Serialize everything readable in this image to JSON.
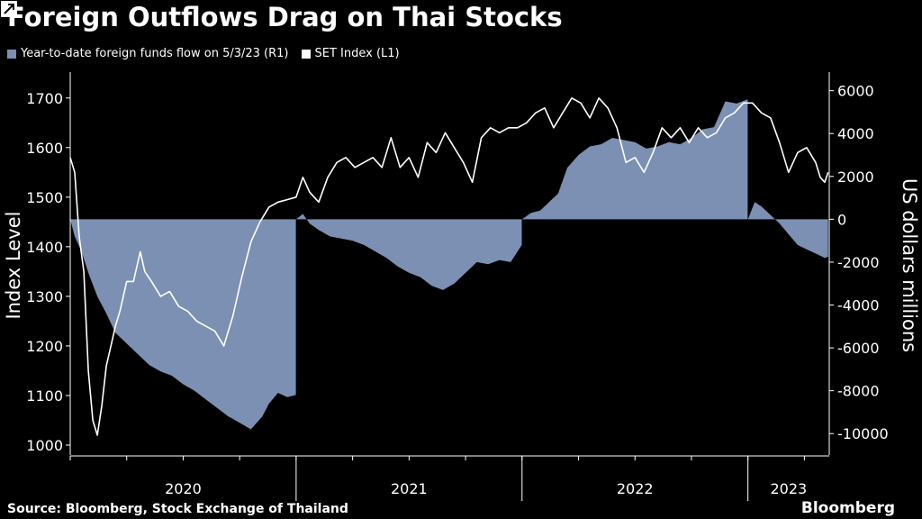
{
  "chart_data": {
    "type": "area+line",
    "title": "Foreign Outflows Drag on Thai Stocks",
    "legend": [
      {
        "name": "Year-to-date foreign funds flow on 5/3/23 (R1)",
        "color": "#7b90b3"
      },
      {
        "name": "SET Index  (L1)",
        "color": "#ffffff"
      }
    ],
    "ylabel_left": "Index Level",
    "ylabel_right": "US dollars millions",
    "ylim_left": [
      980,
      1745
    ],
    "ylim_right": [
      -11000,
      6700
    ],
    "yticks_left": [
      "1700",
      "1600",
      "1500",
      "1400",
      "1300",
      "1200",
      "1100",
      "1000"
    ],
    "yticks_left_values": [
      1700,
      1600,
      1500,
      1400,
      1300,
      1200,
      1100,
      1000
    ],
    "yticks_right": [
      "6000",
      "4000",
      "2000",
      "0",
      "-2000",
      "-4000",
      "-6000",
      "-8000",
      "-10000"
    ],
    "yticks_right_values": [
      6000,
      4000,
      2000,
      0,
      -2000,
      -4000,
      -6000,
      -8000,
      -10000
    ],
    "x_range": [
      2020.0,
      2023.36
    ],
    "xlabels": [
      "2020",
      "2021",
      "2022",
      "2023"
    ],
    "year_starts": [
      2021.0,
      2022.0,
      2023.0
    ],
    "series": [
      {
        "name": "Year-to-date foreign funds flow on 5/3/23 (R1)",
        "type": "area",
        "x": [
          2020.0,
          2020.02,
          2020.05,
          2020.08,
          2020.12,
          2020.16,
          2020.2,
          2020.25,
          2020.3,
          2020.35,
          2020.4,
          2020.45,
          2020.5,
          2020.55,
          2020.6,
          2020.65,
          2020.7,
          2020.75,
          2020.8,
          2020.85,
          2020.88,
          2020.92,
          2020.96,
          2020.999,
          2021.0,
          2021.03,
          2021.06,
          2021.1,
          2021.15,
          2021.2,
          2021.25,
          2021.3,
          2021.35,
          2021.4,
          2021.45,
          2021.5,
          2021.55,
          2021.6,
          2021.65,
          2021.7,
          2021.75,
          2021.8,
          2021.85,
          2021.9,
          2021.95,
          2021.999,
          2022.0,
          2022.04,
          2022.08,
          2022.12,
          2022.16,
          2022.2,
          2022.25,
          2022.3,
          2022.35,
          2022.4,
          2022.45,
          2022.5,
          2022.55,
          2022.6,
          2022.65,
          2022.7,
          2022.75,
          2022.8,
          2022.85,
          2022.9,
          2022.95,
          2022.999,
          2023.0,
          2023.03,
          2023.06,
          2023.1,
          2023.14,
          2023.18,
          2023.22,
          2023.26,
          2023.3,
          2023.34,
          2023.355
        ],
        "values": [
          0,
          -800,
          -1500,
          -2500,
          -3600,
          -4400,
          -5300,
          -5800,
          -6300,
          -6800,
          -7100,
          -7300,
          -7700,
          -8000,
          -8400,
          -8800,
          -9200,
          -9500,
          -9800,
          -9200,
          -8600,
          -8100,
          -8300,
          -8200,
          0,
          250,
          -200,
          -500,
          -800,
          -900,
          -1000,
          -1200,
          -1500,
          -1800,
          -2200,
          -2500,
          -2700,
          -3100,
          -3300,
          -3000,
          -2500,
          -2000,
          -2100,
          -1900,
          -2000,
          -1200,
          0,
          300,
          400,
          800,
          1200,
          2400,
          3000,
          3400,
          3500,
          3800,
          3700,
          3600,
          3300,
          3400,
          3600,
          3500,
          3800,
          4200,
          4300,
          5500,
          5400,
          5600,
          0,
          800,
          600,
          200,
          -200,
          -700,
          -1200,
          -1400,
          -1600,
          -1800,
          -1750
        ]
      },
      {
        "name": "SET Index  (L1)",
        "type": "line",
        "x": [
          2020.0,
          2020.02,
          2020.04,
          2020.06,
          2020.08,
          2020.1,
          2020.12,
          2020.14,
          2020.16,
          2020.18,
          2020.2,
          2020.22,
          2020.25,
          2020.28,
          2020.31,
          2020.33,
          2020.36,
          2020.4,
          2020.44,
          2020.48,
          2020.52,
          2020.56,
          2020.6,
          2020.64,
          2020.68,
          2020.72,
          2020.76,
          2020.8,
          2020.84,
          2020.88,
          2020.92,
          2020.96,
          2021.0,
          2021.03,
          2021.06,
          2021.1,
          2021.14,
          2021.18,
          2021.22,
          2021.26,
          2021.3,
          2021.34,
          2021.38,
          2021.42,
          2021.46,
          2021.5,
          2021.54,
          2021.58,
          2021.62,
          2021.66,
          2021.7,
          2021.74,
          2021.78,
          2021.82,
          2021.86,
          2021.9,
          2021.94,
          2021.98,
          2022.02,
          2022.06,
          2022.1,
          2022.14,
          2022.18,
          2022.22,
          2022.26,
          2022.3,
          2022.34,
          2022.38,
          2022.42,
          2022.46,
          2022.5,
          2022.54,
          2022.58,
          2022.62,
          2022.66,
          2022.7,
          2022.74,
          2022.78,
          2022.82,
          2022.86,
          2022.9,
          2022.94,
          2022.98,
          2023.02,
          2023.06,
          2023.1,
          2023.14,
          2023.18,
          2023.22,
          2023.26,
          2023.3,
          2023.32,
          2023.34,
          2023.355
        ],
        "values": [
          1580,
          1550,
          1420,
          1350,
          1150,
          1050,
          1020,
          1080,
          1160,
          1200,
          1240,
          1270,
          1330,
          1330,
          1390,
          1350,
          1330,
          1300,
          1310,
          1280,
          1270,
          1250,
          1240,
          1230,
          1200,
          1260,
          1340,
          1410,
          1450,
          1480,
          1490,
          1495,
          1500,
          1540,
          1510,
          1490,
          1540,
          1570,
          1580,
          1560,
          1570,
          1580,
          1560,
          1620,
          1560,
          1580,
          1540,
          1610,
          1590,
          1630,
          1600,
          1570,
          1530,
          1620,
          1640,
          1630,
          1640,
          1640,
          1650,
          1670,
          1680,
          1640,
          1670,
          1700,
          1690,
          1660,
          1700,
          1680,
          1640,
          1570,
          1580,
          1550,
          1590,
          1640,
          1620,
          1640,
          1610,
          1640,
          1620,
          1630,
          1660,
          1670,
          1690,
          1690,
          1670,
          1660,
          1610,
          1550,
          1590,
          1600,
          1570,
          1540,
          1530,
          1550
        ]
      }
    ]
  },
  "source": "Source: Bloomberg, Stock Exchange of Thailand",
  "brand": "Bloomberg",
  "colors": {
    "background": "#000000",
    "area": "#7b90b3",
    "line": "#ffffff",
    "axis": "#ffffff"
  }
}
